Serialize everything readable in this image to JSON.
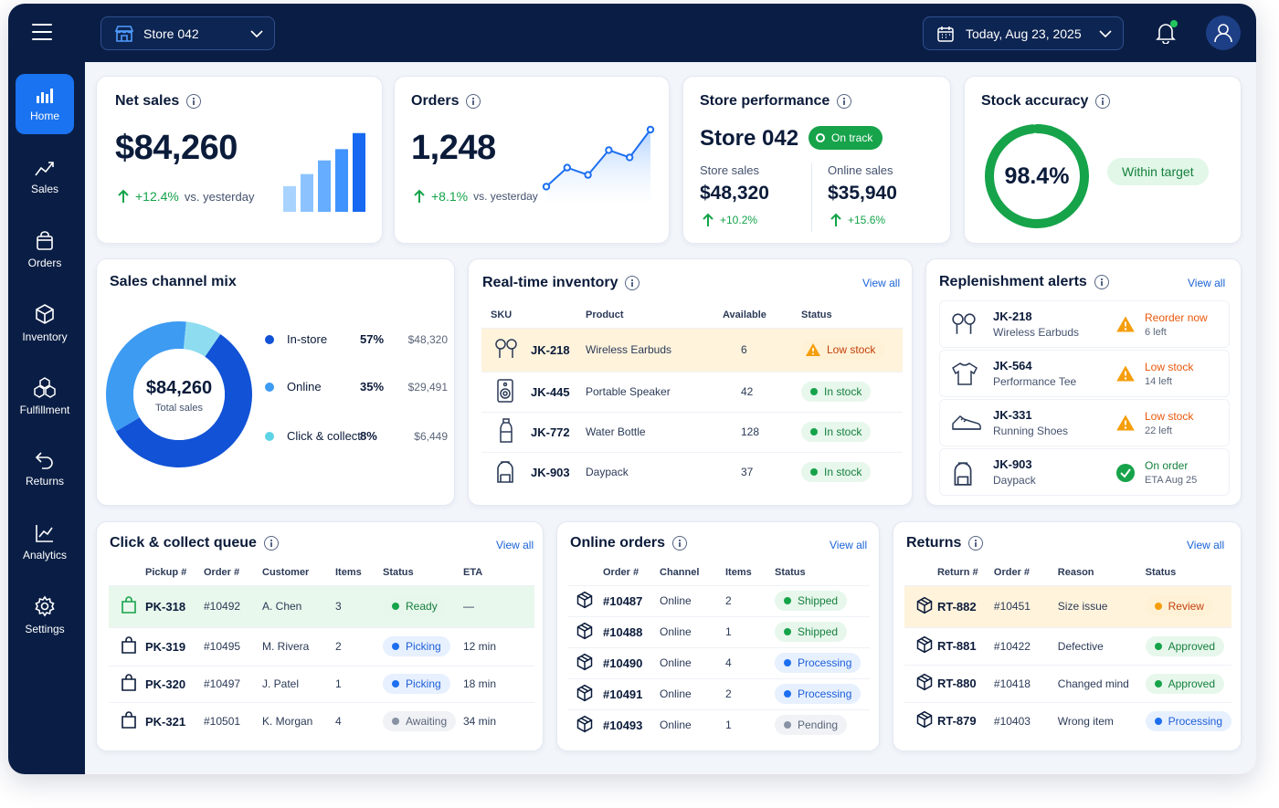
{
  "topbar": {
    "store": "Store 042",
    "date": "Today, Aug 23, 2025"
  },
  "sidebar": {
    "items": [
      {
        "label": "Home",
        "icon": "bar-chart-icon"
      },
      {
        "label": "Sales",
        "icon": "trend-icon"
      },
      {
        "label": "Orders",
        "icon": "bag-icon"
      },
      {
        "label": "Inventory",
        "icon": "box-icon"
      },
      {
        "label": "Fulfillment",
        "icon": "boxes-icon"
      },
      {
        "label": "Returns",
        "icon": "return-icon"
      },
      {
        "label": "Analytics",
        "icon": "analytics-icon"
      },
      {
        "label": "Settings",
        "icon": "gear-icon"
      }
    ]
  },
  "net_sales": {
    "title": "Net sales",
    "value": "$84,260",
    "change": "+12.4%",
    "vs": "vs. yesterday",
    "bars": [
      0.32,
      0.47,
      0.64,
      0.78,
      0.98
    ]
  },
  "orders": {
    "title": "Orders",
    "value": "1,248",
    "change": "+8.1%",
    "vs": "vs. yesterday",
    "line": [
      0.22,
      0.48,
      0.38,
      0.72,
      0.62,
      1.0
    ]
  },
  "store_performance": {
    "title": "Store performance",
    "store": "Store 042",
    "badge": "On track",
    "store_sales_label": "Store sales",
    "store_sales": "$48,320",
    "store_change": "+10.2%",
    "online_sales_label": "Online sales",
    "online_sales": "$35,940",
    "online_change": "+15.6%"
  },
  "stock_accuracy": {
    "title": "Stock accuracy",
    "value": "98.4%",
    "fraction": 0.984,
    "badge": "Within target"
  },
  "sales_channel": {
    "title": "Sales channel mix",
    "total": "$84,260",
    "total_label": "Total sales",
    "channels": [
      {
        "name": "In-store",
        "pct": "57%",
        "amount": "$48,320",
        "share": 57,
        "color": "#1152d6"
      },
      {
        "name": "Online",
        "pct": "35%",
        "amount": "$29,491",
        "share": 35,
        "color": "#3d9bf2"
      },
      {
        "name": "Click & collect",
        "pct": "8%",
        "amount": "$6,449",
        "share": 8,
        "color": "#8edcf0"
      }
    ]
  },
  "inventory": {
    "title": "Real-time inventory",
    "view_all": "View all",
    "headers": [
      "SKU",
      "Product",
      "Available",
      "Status"
    ],
    "rows": [
      {
        "sku": "JK-218",
        "product": "Wireless Earbuds",
        "available": "6",
        "status": "Low stock",
        "icon": "earbuds-icon"
      },
      {
        "sku": "JK-445",
        "product": "Portable Speaker",
        "available": "42",
        "status": "In stock",
        "icon": "speaker-icon"
      },
      {
        "sku": "JK-772",
        "product": "Water Bottle",
        "available": "128",
        "status": "In stock",
        "icon": "bottle-icon"
      },
      {
        "sku": "JK-903",
        "product": "Daypack",
        "available": "37",
        "status": "In stock",
        "icon": "backpack-icon"
      }
    ]
  },
  "replenishment": {
    "title": "Replenishment alerts",
    "view_all": "View all",
    "rows": [
      {
        "sku": "JK-218",
        "product": "Wireless Earbuds",
        "status": "Reorder now",
        "sub": "6 left",
        "icon": "earbuds-icon"
      },
      {
        "sku": "JK-564",
        "product": "Performance Tee",
        "status": "Low stock",
        "sub": "14 left",
        "icon": "tshirt-icon"
      },
      {
        "sku": "JK-331",
        "product": "Running Shoes",
        "status": "Low stock",
        "sub": "22 left",
        "icon": "shoe-icon"
      },
      {
        "sku": "JK-903",
        "product": "Daypack",
        "status": "On order",
        "sub": "ETA Aug 25",
        "icon": "backpack-icon"
      }
    ]
  },
  "click_collect": {
    "title": "Click & collect queue",
    "view_all": "View all",
    "headers": [
      "Pickup #",
      "Order #",
      "Customer",
      "Items",
      "Status",
      "ETA"
    ],
    "rows": [
      {
        "pickup": "PK-318",
        "order": "#10492",
        "customer": "A. Chen",
        "items": "3",
        "status": "Ready",
        "eta": "—"
      },
      {
        "pickup": "PK-319",
        "order": "#10495",
        "customer": "M. Rivera",
        "items": "2",
        "status": "Picking",
        "eta": "12 min"
      },
      {
        "pickup": "PK-320",
        "order": "#10497",
        "customer": "J. Patel",
        "items": "1",
        "status": "Picking",
        "eta": "18 min"
      },
      {
        "pickup": "PK-321",
        "order": "#10501",
        "customer": "K. Morgan",
        "items": "4",
        "status": "Awaiting",
        "eta": "34 min"
      }
    ]
  },
  "online_orders": {
    "title": "Online orders",
    "view_all": "View all",
    "headers": [
      "Order #",
      "Channel",
      "Items",
      "Status"
    ],
    "rows": [
      {
        "order": "#10487",
        "channel": "Online",
        "items": "2",
        "status": "Shipped"
      },
      {
        "order": "#10488",
        "channel": "Online",
        "items": "1",
        "status": "Shipped"
      },
      {
        "order": "#10490",
        "channel": "Online",
        "items": "4",
        "status": "Processing"
      },
      {
        "order": "#10491",
        "channel": "Online",
        "items": "2",
        "status": "Processing"
      },
      {
        "order": "#10493",
        "channel": "Online",
        "items": "1",
        "status": "Pending"
      }
    ]
  },
  "returns": {
    "title": "Returns",
    "view_all": "View all",
    "headers": [
      "Return #",
      "Order #",
      "Reason",
      "Status"
    ],
    "rows": [
      {
        "ret": "RT-882",
        "order": "#10451",
        "reason": "Size issue",
        "status": "Review"
      },
      {
        "ret": "RT-881",
        "order": "#10422",
        "reason": "Defective",
        "status": "Approved"
      },
      {
        "ret": "RT-880",
        "order": "#10418",
        "reason": "Changed mind",
        "status": "Approved"
      },
      {
        "ret": "RT-879",
        "order": "#10403",
        "reason": "Wrong item",
        "status": "Processing"
      }
    ]
  }
}
